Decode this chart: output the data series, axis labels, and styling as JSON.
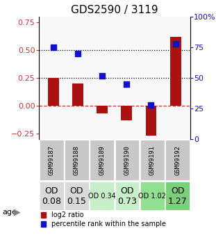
{
  "title": "GDS2590 / 3119",
  "samples": [
    "GSM99187",
    "GSM99188",
    "GSM99189",
    "GSM99190",
    "GSM99191",
    "GSM99192"
  ],
  "log2_ratio": [
    0.25,
    0.2,
    -0.07,
    -0.13,
    -0.27,
    0.62
  ],
  "percentile_rank": [
    75,
    70,
    52,
    45,
    28,
    78
  ],
  "bar_color": "#aa1111",
  "dot_color": "#1111cc",
  "ylim_left": [
    -0.3,
    0.8
  ],
  "ylim_right": [
    0,
    100
  ],
  "yticks_left": [
    -0.25,
    0.0,
    0.25,
    0.5,
    0.75
  ],
  "yticks_right": [
    0,
    25,
    50,
    75,
    100
  ],
  "ytick_labels_right": [
    "0",
    "25",
    "50",
    "75",
    "100%"
  ],
  "hlines": [
    0.0,
    0.25,
    0.5
  ],
  "hline_styles": [
    "dashed",
    "dotted",
    "dotted"
  ],
  "hline_colors": [
    "#cc3333",
    "#000000",
    "#000000"
  ],
  "age_labels": [
    "OD\n0.08",
    "OD\n0.15",
    "OD 0.34",
    "OD\n0.73",
    "OD 1.02",
    "OD\n1.27"
  ],
  "age_bg_colors": [
    "#d9d9d9",
    "#d9d9d9",
    "#c8f0c8",
    "#c8f0c8",
    "#90e090",
    "#7ad07a"
  ],
  "age_fontsize": [
    9,
    9,
    7,
    9,
    7,
    9
  ],
  "sample_bg_color": "#c8c8c8",
  "background_color": "#ffffff"
}
